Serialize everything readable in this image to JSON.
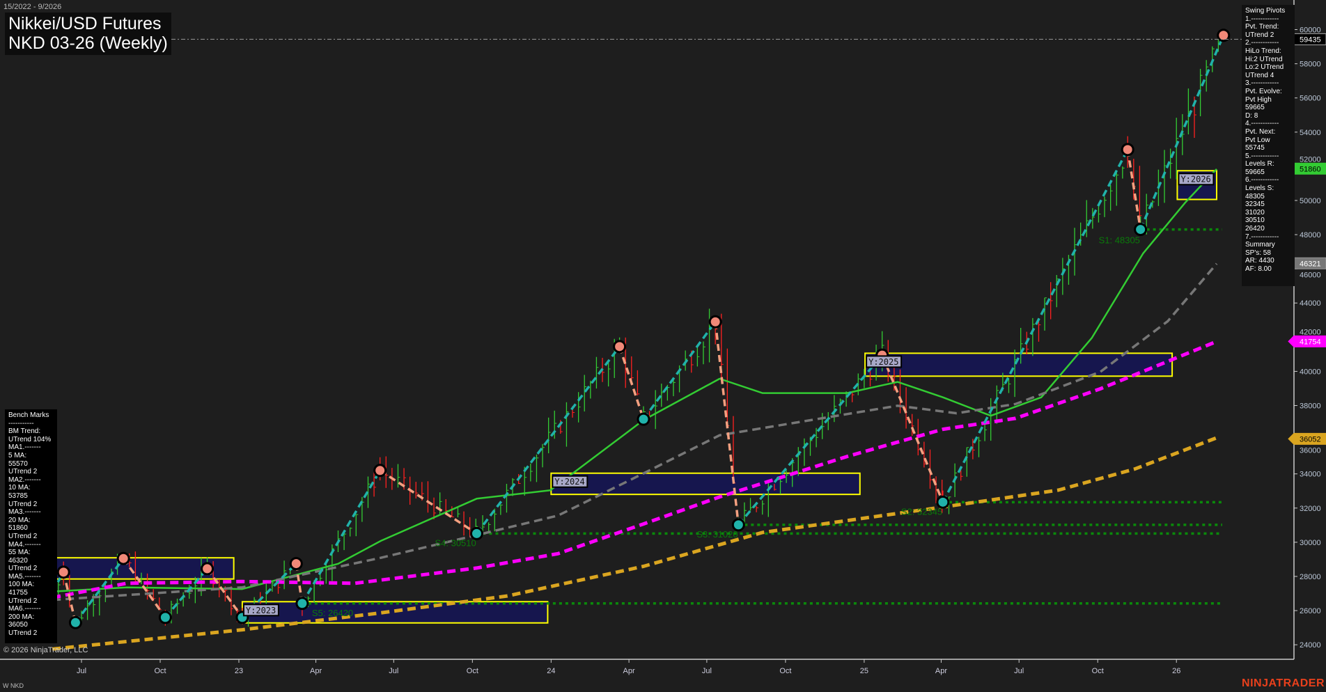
{
  "header": {
    "date_range": "15/2022 - 9/2026",
    "title_line1": "Nikkei/USD Futures",
    "title_line2": "NKD 03-26 (Weekly)"
  },
  "swing_pivots_panel": {
    "lines": [
      "Swing Pivots",
      "1.------------",
      "Pvt. Trend:",
      "UTrend 2",
      "2.------------",
      "HiLo Trend:",
      "Hi:2 UTrend",
      "Lo:2 UTrend",
      "UTrend 4",
      "3.------------",
      "Pvt. Evolve:",
      "Pvt High",
      "59665",
      "D: 8",
      "4.------------",
      "Pvt. Next:",
      "Pvt Low",
      "55745",
      "5.------------",
      "Levels R:",
      "59665",
      "6.------------",
      "Levels S:",
      "48305",
      "32345",
      "31020",
      "30510",
      "26420",
      "7.------------",
      "Summary",
      "SP's: 58",
      "AR: 4430",
      "AF: 8.00"
    ]
  },
  "bench_marks_panel": {
    "lines": [
      "Bench Marks",
      "-----------",
      "BM Trend:",
      "UTrend 104%",
      "MA1.-------",
      "5 MA:",
      "55570",
      "UTrend 2",
      "MA2.-------",
      "10 MA:",
      "53785",
      "UTrend 2",
      "MA3.-------",
      "20 MA:",
      "51860",
      "UTrend 2",
      "MA4.-------",
      "55 MA:",
      "46320",
      "UTrend 2",
      "MA5.-------",
      "100 MA:",
      "41755",
      "UTrend 2",
      "MA6.-------",
      "200 MA:",
      "36050",
      "UTrend 2"
    ]
  },
  "footer": {
    "copyright": "© 2026 NinjaTrader, LLC",
    "symbol": "W NKD",
    "logo": "NINJATRADER"
  },
  "chart_data": {
    "type": "candlestick",
    "instrument": "NKD 03-26",
    "interval": "Weekly",
    "ylim": [
      23000,
      61500
    ],
    "y_ticks": [
      24000,
      26000,
      28000,
      30000,
      32000,
      34000,
      36000,
      38000,
      40000,
      42000,
      44000,
      46000,
      48000,
      50000,
      52000,
      54000,
      56000,
      58000,
      60000
    ],
    "x_ticks": [
      {
        "date": "2022-07-01",
        "label": "Jul"
      },
      {
        "date": "2022-10-01",
        "label": "Oct"
      },
      {
        "date": "2023-01-01",
        "label": "23"
      },
      {
        "date": "2023-04-01",
        "label": "Apr"
      },
      {
        "date": "2023-07-01",
        "label": "Jul"
      },
      {
        "date": "2023-10-01",
        "label": "Oct"
      },
      {
        "date": "2024-01-01",
        "label": "24"
      },
      {
        "date": "2024-04-01",
        "label": "Apr"
      },
      {
        "date": "2024-07-01",
        "label": "Jul"
      },
      {
        "date": "2024-10-01",
        "label": "Oct"
      },
      {
        "date": "2025-01-01",
        "label": "25"
      },
      {
        "date": "2025-04-01",
        "label": "Apr"
      },
      {
        "date": "2025-07-01",
        "label": "Jul"
      },
      {
        "date": "2025-10-01",
        "label": "Oct"
      },
      {
        "date": "2026-01-01",
        "label": "26"
      }
    ],
    "price_tags": [
      {
        "value": "59435",
        "bg": "#000000",
        "fg": "#ffffff",
        "border": "#aaaaaa"
      },
      {
        "value": "51860",
        "bg": "#33cc33",
        "fg": "#000000",
        "border": "#33cc33"
      },
      {
        "value": "46321",
        "bg": "#777777",
        "fg": "#ffffff",
        "border": "#999999"
      },
      {
        "value": "41754",
        "bg": "#ff00ff",
        "fg": "#ffffff",
        "border": "#ff00ff"
      },
      {
        "value": "36052",
        "bg": "#daa520",
        "fg": "#000000",
        "border": "#daa520"
      }
    ],
    "last_price": 59435,
    "swing_pivots": [
      {
        "date": "2022-05-28",
        "price": 27100,
        "type": "start"
      },
      {
        "date": "2022-06-10",
        "price": 28250,
        "type": "high"
      },
      {
        "date": "2022-06-24",
        "price": 25300,
        "type": "low"
      },
      {
        "date": "2022-08-19",
        "price": 29050,
        "type": "high"
      },
      {
        "date": "2022-10-07",
        "price": 25600,
        "type": "low"
      },
      {
        "date": "2022-11-25",
        "price": 28450,
        "type": "high"
      },
      {
        "date": "2023-01-05",
        "price": 25600,
        "type": "low"
      },
      {
        "date": "2023-03-09",
        "price": 28750,
        "type": "high"
      },
      {
        "date": "2023-03-16",
        "price": 26420,
        "type": "low"
      },
      {
        "date": "2023-06-15",
        "price": 34200,
        "type": "high"
      },
      {
        "date": "2023-10-06",
        "price": 30510,
        "type": "low"
      },
      {
        "date": "2024-03-21",
        "price": 41450,
        "type": "high"
      },
      {
        "date": "2024-04-18",
        "price": 37200,
        "type": "low"
      },
      {
        "date": "2024-07-11",
        "price": 42900,
        "type": "high"
      },
      {
        "date": "2024-08-07",
        "price": 31020,
        "type": "low"
      },
      {
        "date": "2025-01-22",
        "price": 40950,
        "type": "high"
      },
      {
        "date": "2025-04-03",
        "price": 32345,
        "type": "low"
      },
      {
        "date": "2025-11-05",
        "price": 52980,
        "type": "high"
      },
      {
        "date": "2025-11-20",
        "price": 48305,
        "type": "low"
      },
      {
        "date": "2026-02-25",
        "price": 59665,
        "type": "high"
      }
    ],
    "support_levels": [
      {
        "label": "S1: 48305",
        "value": 48305,
        "from": "2025-11-20"
      },
      {
        "label": "S2: 32345",
        "value": 32345,
        "from": "2025-04-03"
      },
      {
        "label": "S3: 31020",
        "value": 31020,
        "from": "2024-08-07"
      },
      {
        "label": "S4: 30510",
        "value": 30510,
        "from": "2023-10-06"
      },
      {
        "label": "S5: 26420",
        "value": 26420,
        "from": "2023-03-16"
      }
    ],
    "year_boxes": [
      {
        "label": "",
        "from": "2022-05-28",
        "to": "2022-12-26",
        "high": 29090,
        "low": 27850
      },
      {
        "label": "Y:2023",
        "from": "2023-01-05",
        "to": "2023-12-28",
        "high": 26520,
        "low": 25280
      },
      {
        "label": "Y:2024",
        "from": "2024-01-01",
        "to": "2024-12-27",
        "high": 34040,
        "low": 32800
      },
      {
        "label": "Y:2025",
        "from": "2025-01-02",
        "to": "2025-12-27",
        "high": 41060,
        "low": 39720
      },
      {
        "label": "Y:2026",
        "from": "2026-01-02",
        "to": "2026-02-17",
        "high": 51740,
        "low": 50060
      }
    ],
    "moving_averages": [
      {
        "name": "20 MA",
        "color": "#33cc33",
        "style": "solid",
        "points": [
          [
            "2022-05-28",
            27110
          ],
          [
            "2022-08-23",
            27360
          ],
          [
            "2023-01-05",
            27260
          ],
          [
            "2023-04-27",
            28740
          ],
          [
            "2023-06-16",
            30080
          ],
          [
            "2023-10-06",
            32550
          ],
          [
            "2023-12-31",
            33040
          ],
          [
            "2024-04-18",
            37150
          ],
          [
            "2024-07-16",
            39570
          ],
          [
            "2024-09-04",
            38730
          ],
          [
            "2024-12-12",
            38730
          ],
          [
            "2025-02-09",
            39380
          ],
          [
            "2025-04-03",
            38480
          ],
          [
            "2025-05-29",
            37400
          ],
          [
            "2025-07-27",
            38480
          ],
          [
            "2025-09-24",
            41950
          ],
          [
            "2025-11-23",
            46900
          ],
          [
            "2026-01-11",
            49860
          ],
          [
            "2026-02-17",
            51840
          ]
        ]
      },
      {
        "name": "55 MA",
        "color": "#777777",
        "style": "dashed",
        "points": [
          [
            "2022-05-28",
            26620
          ],
          [
            "2023-01-05",
            27360
          ],
          [
            "2023-06-16",
            29090
          ],
          [
            "2023-10-06",
            30420
          ],
          [
            "2024-01-09",
            31560
          ],
          [
            "2024-04-18",
            34030
          ],
          [
            "2024-07-16",
            36260
          ],
          [
            "2024-12-12",
            37500
          ],
          [
            "2025-02-09",
            37990
          ],
          [
            "2025-04-19",
            37550
          ],
          [
            "2025-06-27",
            38090
          ],
          [
            "2025-10-04",
            39970
          ],
          [
            "2025-12-22",
            42940
          ],
          [
            "2026-02-17",
            46300
          ]
        ]
      },
      {
        "name": "100 MA",
        "color": "#ff00ff",
        "style": "dashed",
        "points": [
          [
            "2022-05-28",
            26760
          ],
          [
            "2022-08-23",
            27600
          ],
          [
            "2023-01-05",
            27700
          ],
          [
            "2023-05-17",
            27600
          ],
          [
            "2023-10-06",
            28490
          ],
          [
            "2024-01-09",
            29330
          ],
          [
            "2024-04-18",
            31070
          ],
          [
            "2024-07-16",
            32650
          ],
          [
            "2024-12-12",
            35020
          ],
          [
            "2025-04-03",
            36610
          ],
          [
            "2025-06-27",
            37250
          ],
          [
            "2025-10-04",
            38980
          ],
          [
            "2026-02-17",
            41750
          ]
        ]
      },
      {
        "name": "200 MA",
        "color": "#daa520",
        "style": "dashed",
        "points": [
          [
            "2022-05-28",
            23750
          ],
          [
            "2023-01-05",
            24880
          ],
          [
            "2023-06-16",
            25870
          ],
          [
            "2023-11-11",
            26860
          ],
          [
            "2024-04-18",
            28590
          ],
          [
            "2024-09-04",
            30570
          ],
          [
            "2025-04-03",
            32060
          ],
          [
            "2025-08-16",
            33050
          ],
          [
            "2025-11-13",
            34280
          ],
          [
            "2026-02-17",
            36110
          ]
        ]
      }
    ],
    "colors": {
      "up_bar": "#33cc33",
      "down_bar": "#ff2020",
      "swing_up": "#20b2aa",
      "swing_down": "#f4a080",
      "support": "#0a8a0a",
      "box_fill": "#16164e",
      "box_border": "#ffff00",
      "background": "#1e1e1e"
    }
  }
}
